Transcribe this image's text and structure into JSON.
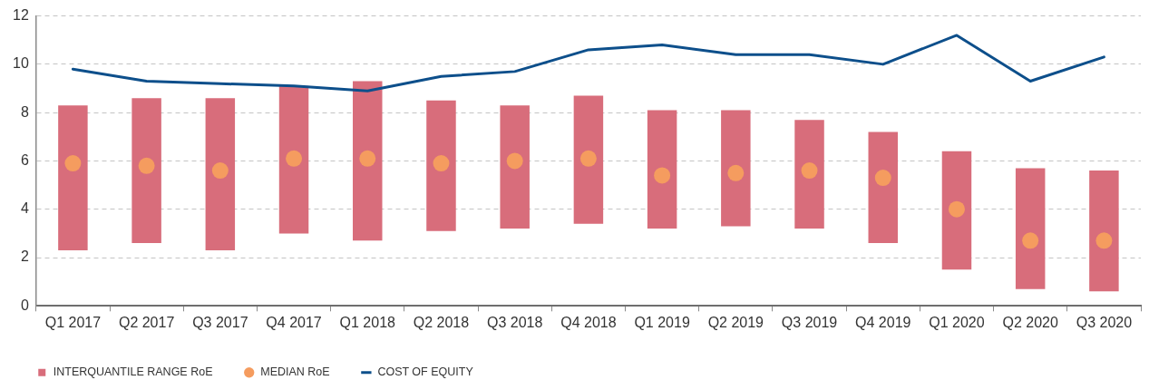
{
  "chart_data": {
    "type": "bar",
    "categories": [
      "Q1 2017",
      "Q2 2017",
      "Q3 2017",
      "Q4 2017",
      "Q1 2018",
      "Q2 2018",
      "Q3 2018",
      "Q4 2018",
      "Q1 2019",
      "Q2 2019",
      "Q3 2019",
      "Q4 2019",
      "Q1 2020",
      "Q2 2020",
      "Q3 2020"
    ],
    "series": [
      {
        "name": "INTERQUANTILE RANGE RoE",
        "color": "#d86d7b",
        "base": [
          2.3,
          2.6,
          2.3,
          3.0,
          2.7,
          3.1,
          3.2,
          3.4,
          3.2,
          3.3,
          3.2,
          2.6,
          1.5,
          0.7,
          0.6
        ],
        "values": [
          6.0,
          6.0,
          6.3,
          6.1,
          6.6,
          5.4,
          5.1,
          5.3,
          4.9,
          4.8,
          4.5,
          4.6,
          4.9,
          5.0,
          5.0
        ]
      },
      {
        "name": "MEDIAN RoE",
        "type": "scatter",
        "color": "#f59c5f",
        "marker": "circle",
        "x": [
          "Q1 2017",
          "Q2 2017",
          "Q3 2017",
          "Q4 2017",
          "Q1 2018",
          "Q2 2018",
          "Q3 2018",
          "Q4 2018",
          "Q1 2019",
          "Q2 2019",
          "Q3 2019",
          "Q4 2019",
          "Q1 2020",
          "Q2 2020",
          "Q3 2020"
        ],
        "values": [
          5.9,
          5.8,
          5.6,
          6.1,
          6.1,
          5.9,
          6.0,
          6.1,
          5.4,
          5.5,
          5.6,
          5.3,
          4.0,
          2.7,
          2.7
        ]
      },
      {
        "name": "COST OF EQUITY",
        "type": "line",
        "color": "#0d4f8b",
        "values": [
          9.8,
          9.3,
          9.2,
          9.1,
          8.9,
          9.5,
          9.7,
          10.6,
          10.8,
          10.4,
          10.4,
          10.0,
          11.2,
          9.3,
          10.3
        ]
      }
    ],
    "ylim": [
      0,
      12
    ],
    "yticks": [
      0,
      2,
      4,
      6,
      8,
      10,
      12
    ],
    "grid": "y",
    "legend": "bottom left"
  }
}
